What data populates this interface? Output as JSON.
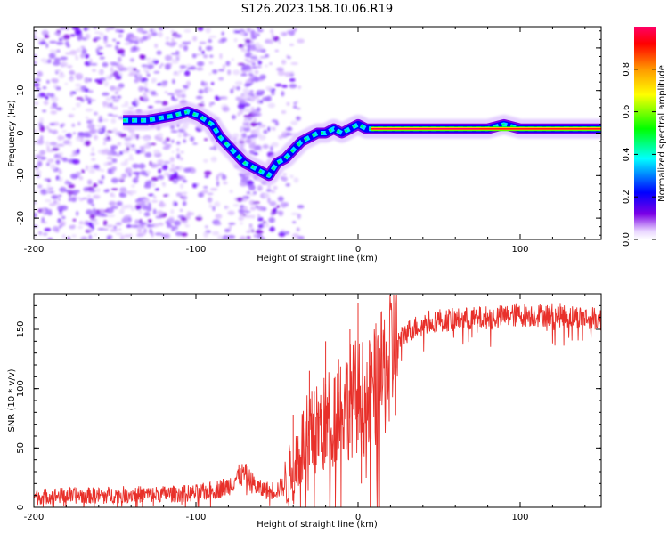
{
  "figure_title": "S126.2023.158.10.06.R19",
  "chart_data": [
    {
      "type": "heatmap",
      "title": "S126.2023.158.10.06.R19",
      "xlabel": "Height of straight line (km)",
      "ylabel": "Frequency (Hz)",
      "xlim": [
        -200,
        150
      ],
      "ylim": [
        -25,
        25
      ],
      "x_ticks": [
        -200,
        -100,
        0,
        100
      ],
      "y_ticks": [
        -20,
        -10,
        0,
        10,
        20
      ],
      "grid": false,
      "colorbar": {
        "label": "Normalized spectral amplitude",
        "range": [
          0,
          1
        ],
        "ticks": [
          0.0,
          0.2,
          0.4,
          0.6,
          0.8
        ],
        "colormap": [
          "#ffffff",
          "#e8d4ff",
          "#7b00e6",
          "#0000ff",
          "#00ffff",
          "#00ff00",
          "#ffff00",
          "#ff9900",
          "#ff0000",
          "#ff0066"
        ]
      },
      "ridge": {
        "x": [
          -145,
          -130,
          -115,
          -105,
          -98,
          -90,
          -85,
          -80,
          -75,
          -70,
          -65,
          -60,
          -55,
          -50,
          -45,
          -40,
          -35,
          -30,
          -25,
          -20,
          -15,
          -10,
          -5,
          0,
          5,
          10,
          20,
          40,
          60,
          80,
          90,
          100,
          110,
          120,
          130,
          140,
          150
        ],
        "y": [
          3,
          3,
          4,
          5,
          4,
          2,
          -1,
          -3,
          -5,
          -7,
          -8,
          -9,
          -10,
          -7,
          -6,
          -4,
          -2,
          -1,
          0,
          0,
          1,
          0,
          1,
          2,
          1,
          1,
          1,
          1,
          1,
          1,
          2,
          1,
          1,
          1,
          1,
          1,
          1
        ]
      }
    },
    {
      "type": "line",
      "xlabel": "Height of straight line (km)",
      "ylabel": "SNR (10 * v/v)",
      "xlim": [
        -200,
        150
      ],
      "ylim": [
        0,
        180
      ],
      "x_ticks": [
        -200,
        -100,
        0,
        100
      ],
      "y_ticks": [
        0,
        50,
        100,
        150
      ],
      "grid": false,
      "color": "#e8302a",
      "envelope": {
        "x": [
          -200,
          -180,
          -160,
          -140,
          -120,
          -100,
          -90,
          -80,
          -75,
          -70,
          -65,
          -60,
          -55,
          -50,
          -45,
          -40,
          -35,
          -30,
          -25,
          -20,
          -15,
          -10,
          -5,
          0,
          5,
          10,
          15,
          20,
          25,
          30,
          40,
          50,
          60,
          80,
          100,
          120,
          140,
          150
        ],
        "y": [
          9,
          10,
          10,
          11,
          11,
          12,
          14,
          18,
          25,
          28,
          20,
          15,
          14,
          15,
          18,
          35,
          50,
          60,
          65,
          70,
          80,
          85,
          90,
          95,
          90,
          100,
          110,
          130,
          140,
          148,
          155,
          158,
          158,
          160,
          162,
          162,
          160,
          158
        ]
      },
      "spikes": {
        "x": [
          -40,
          -30,
          -27,
          -20,
          -12,
          -5,
          0,
          2,
          8
        ],
        "y": [
          78,
          115,
          98,
          140,
          125,
          150,
          172,
          20,
          120
        ]
      }
    }
  ]
}
